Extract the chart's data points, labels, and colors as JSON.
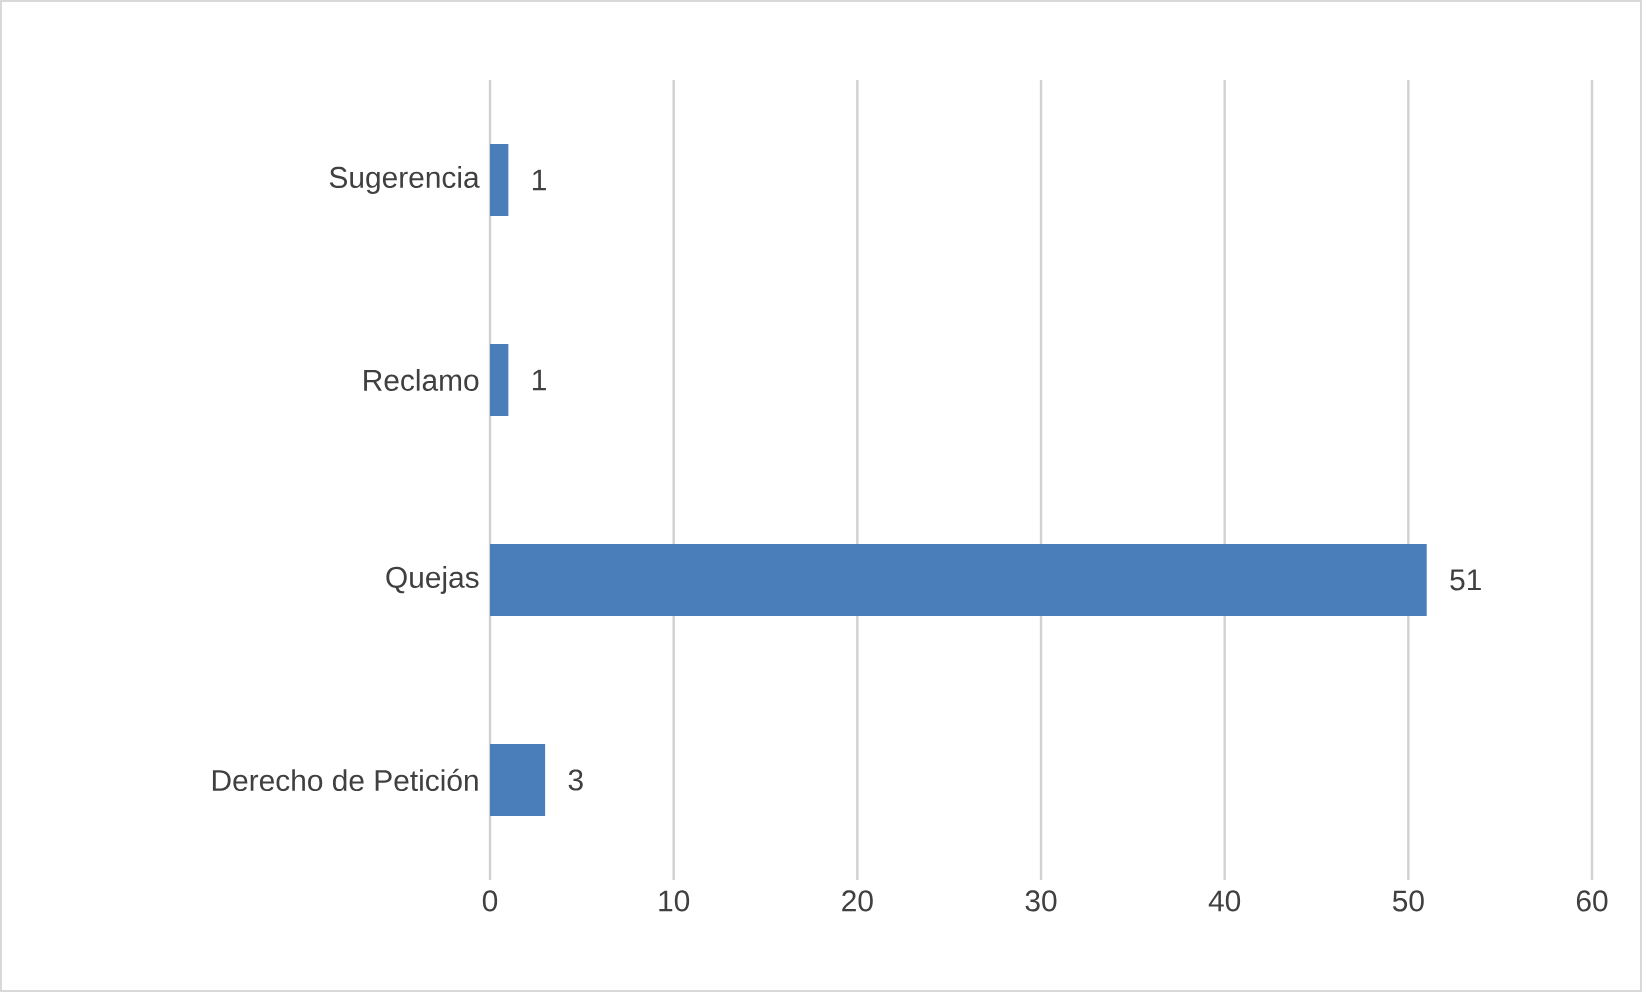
{
  "chart_data": {
    "type": "bar",
    "orientation": "horizontal",
    "categories": [
      "Sugerencia",
      "Reclamo",
      "Quejas",
      "Derecho de Petición"
    ],
    "values": [
      1,
      1,
      51,
      3
    ],
    "color": "#4a7ebb",
    "xlim": [
      0,
      60
    ],
    "xticks": [
      0,
      10,
      20,
      30,
      40,
      50,
      60
    ],
    "grid": "x",
    "data_labels": true
  }
}
